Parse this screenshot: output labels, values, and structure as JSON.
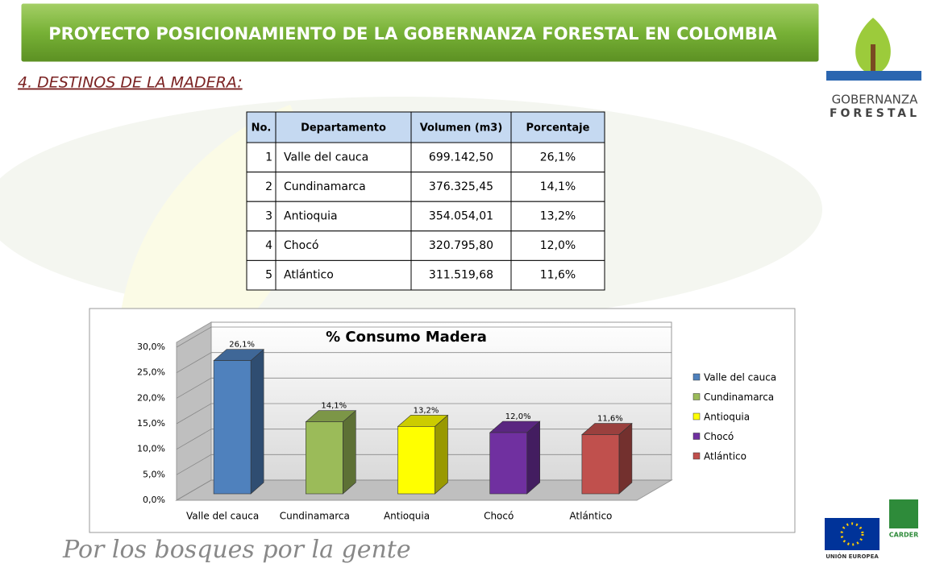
{
  "header": {
    "title": "PROYECTO POSICIONAMIENTO DE LA GOBERNANZA FORESTAL EN COLOMBIA",
    "subtitle": "4. DESTINOS DE LA MADERA:"
  },
  "logo": {
    "line1": "GOBERNANZA",
    "line2": "FORESTAL"
  },
  "table": {
    "columns": [
      "No.",
      "Departamento",
      "Volumen (m3)",
      "Porcentaje"
    ],
    "rows": [
      [
        "1",
        "Valle del cauca",
        "699.142,50",
        "26,1%"
      ],
      [
        "2",
        "Cundinamarca",
        "376.325,45",
        "14,1%"
      ],
      [
        "3",
        "Antioquia",
        "354.054,01",
        "13,2%"
      ],
      [
        "4",
        "Chocó",
        "320.795,80",
        "12,0%"
      ],
      [
        "5",
        "Atlántico",
        "311.519,68",
        "11,6%"
      ]
    ]
  },
  "chart_data": {
    "type": "bar3d",
    "title": "% Consumo Madera",
    "categories": [
      "Valle del cauca",
      "Cundinamarca",
      "Antioquia",
      "Chocó",
      "Atlántico"
    ],
    "values": [
      26.1,
      14.1,
      13.2,
      12.0,
      11.6
    ],
    "value_labels": [
      "26,1%",
      "14,1%",
      "13,2%",
      "12,0%",
      "11,6%"
    ],
    "colors": [
      "#4f81bd",
      "#9bbb59",
      "#ffff00",
      "#7030a0",
      "#c0504d"
    ],
    "ylim": [
      0,
      30
    ],
    "yticks": [
      {
        "value": 0,
        "label": "0,0%"
      },
      {
        "value": 5,
        "label": "5,0%"
      },
      {
        "value": 10,
        "label": "10,0%"
      },
      {
        "value": 15,
        "label": "15,0%"
      },
      {
        "value": 20,
        "label": "20,0%"
      },
      {
        "value": 25,
        "label": "25,0%"
      },
      {
        "value": 30,
        "label": "30,0%"
      }
    ],
    "grid": true,
    "legend": "right"
  },
  "footer": {
    "slogan": "Por los bosques por la gente",
    "eu": "UNIÓN EUROPEA",
    "carder": "CARDER"
  }
}
